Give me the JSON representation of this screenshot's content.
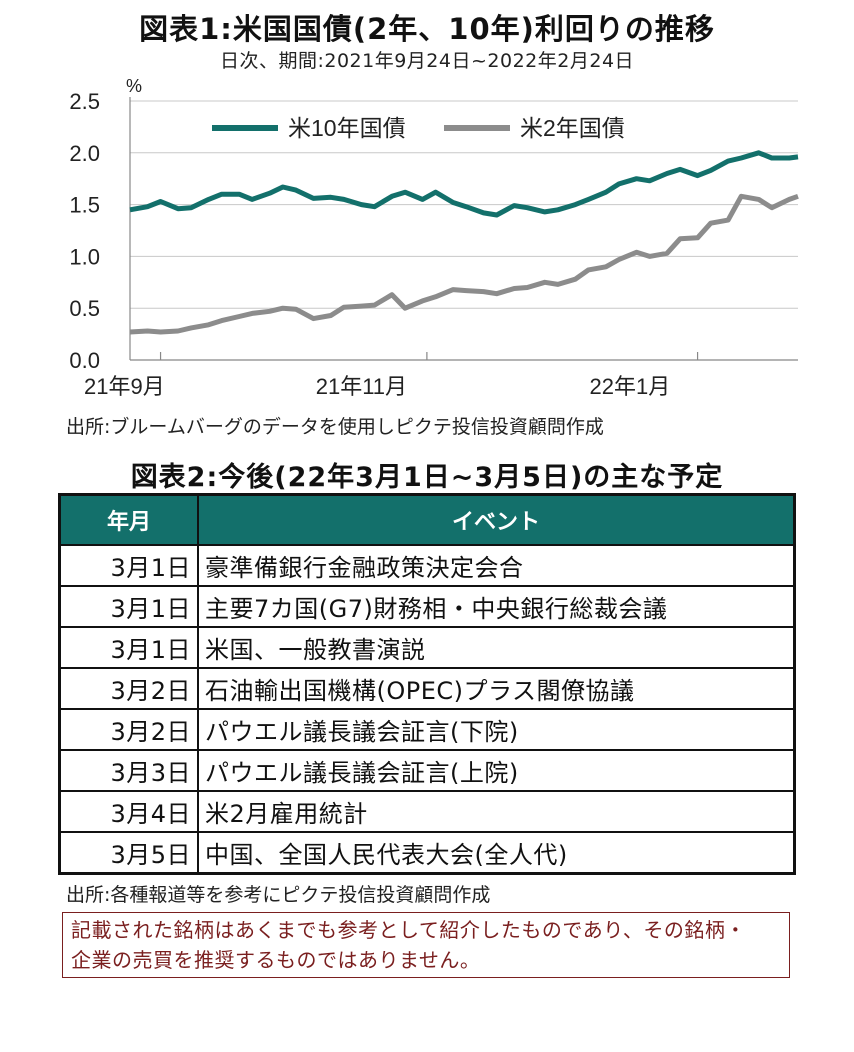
{
  "chart": {
    "title": "図表1:米国国債(2年、10年)利回りの推移",
    "subtitle": "日次、期間:2021年9月24日~2022年2月24日",
    "unit": "%",
    "source": "出所:ブルームバーグのデータを使用しピクテ投信投資顧問作成"
  },
  "chart_data": {
    "type": "line",
    "ylim": [
      0.0,
      2.5
    ],
    "y_ticks": [
      "0.0",
      "0.5",
      "1.0",
      "1.5",
      "2.0",
      "2.5"
    ],
    "x_tick_labels": [
      "21年9月",
      "21年11月",
      "22年1月"
    ],
    "grid": true,
    "legend_placement": "top-left",
    "x_range": [
      "2021-09-24",
      "2022-02-24"
    ],
    "series": [
      {
        "name": "米10年国債",
        "color": "#13706b",
        "points": [
          [
            "2021-09-24",
            1.45
          ],
          [
            "2021-09-28",
            1.48
          ],
          [
            "2021-10-01",
            1.53
          ],
          [
            "2021-10-05",
            1.46
          ],
          [
            "2021-10-08",
            1.47
          ],
          [
            "2021-10-12",
            1.55
          ],
          [
            "2021-10-15",
            1.6
          ],
          [
            "2021-10-19",
            1.6
          ],
          [
            "2021-10-22",
            1.55
          ],
          [
            "2021-10-26",
            1.61
          ],
          [
            "2021-10-29",
            1.67
          ],
          [
            "2021-11-01",
            1.64
          ],
          [
            "2021-11-05",
            1.56
          ],
          [
            "2021-11-09",
            1.57
          ],
          [
            "2021-11-12",
            1.55
          ],
          [
            "2021-11-16",
            1.5
          ],
          [
            "2021-11-19",
            1.48
          ],
          [
            "2021-11-23",
            1.58
          ],
          [
            "2021-11-26",
            1.62
          ],
          [
            "2021-11-30",
            1.55
          ],
          [
            "2021-12-03",
            1.62
          ],
          [
            "2021-12-07",
            1.52
          ],
          [
            "2021-12-10",
            1.48
          ],
          [
            "2021-12-14",
            1.42
          ],
          [
            "2021-12-17",
            1.4
          ],
          [
            "2021-12-21",
            1.49
          ],
          [
            "2021-12-24",
            1.47
          ],
          [
            "2021-12-28",
            1.43
          ],
          [
            "2021-12-31",
            1.45
          ],
          [
            "2022-01-04",
            1.5
          ],
          [
            "2022-01-07",
            1.55
          ],
          [
            "2022-01-11",
            1.62
          ],
          [
            "2022-01-14",
            1.7
          ],
          [
            "2022-01-18",
            1.75
          ],
          [
            "2022-01-21",
            1.73
          ],
          [
            "2022-01-25",
            1.8
          ],
          [
            "2022-01-28",
            1.84
          ],
          [
            "2022-02-01",
            1.78
          ],
          [
            "2022-02-04",
            1.83
          ],
          [
            "2022-02-08",
            1.92
          ],
          [
            "2022-02-11",
            1.95
          ],
          [
            "2022-02-15",
            2.0
          ],
          [
            "2022-02-18",
            1.95
          ],
          [
            "2022-02-22",
            1.95
          ],
          [
            "2022-02-24",
            1.96
          ]
        ]
      },
      {
        "name": "米2年国債",
        "color": "#8c8c8c",
        "points": [
          [
            "2021-09-24",
            0.27
          ],
          [
            "2021-09-28",
            0.28
          ],
          [
            "2021-10-01",
            0.27
          ],
          [
            "2021-10-05",
            0.28
          ],
          [
            "2021-10-08",
            0.31
          ],
          [
            "2021-10-12",
            0.34
          ],
          [
            "2021-10-15",
            0.38
          ],
          [
            "2021-10-19",
            0.42
          ],
          [
            "2021-10-22",
            0.45
          ],
          [
            "2021-10-26",
            0.47
          ],
          [
            "2021-10-29",
            0.5
          ],
          [
            "2021-11-01",
            0.49
          ],
          [
            "2021-11-05",
            0.4
          ],
          [
            "2021-11-09",
            0.43
          ],
          [
            "2021-11-12",
            0.51
          ],
          [
            "2021-11-16",
            0.52
          ],
          [
            "2021-11-19",
            0.53
          ],
          [
            "2021-11-23",
            0.63
          ],
          [
            "2021-11-26",
            0.5
          ],
          [
            "2021-11-30",
            0.57
          ],
          [
            "2021-12-03",
            0.61
          ],
          [
            "2021-12-07",
            0.68
          ],
          [
            "2021-12-10",
            0.67
          ],
          [
            "2021-12-14",
            0.66
          ],
          [
            "2021-12-17",
            0.64
          ],
          [
            "2021-12-21",
            0.69
          ],
          [
            "2021-12-24",
            0.7
          ],
          [
            "2021-12-28",
            0.75
          ],
          [
            "2021-12-31",
            0.73
          ],
          [
            "2022-01-04",
            0.78
          ],
          [
            "2022-01-07",
            0.87
          ],
          [
            "2022-01-11",
            0.9
          ],
          [
            "2022-01-14",
            0.97
          ],
          [
            "2022-01-18",
            1.04
          ],
          [
            "2022-01-21",
            1.0
          ],
          [
            "2022-01-25",
            1.03
          ],
          [
            "2022-01-28",
            1.17
          ],
          [
            "2022-02-01",
            1.18
          ],
          [
            "2022-02-04",
            1.32
          ],
          [
            "2022-02-08",
            1.35
          ],
          [
            "2022-02-11",
            1.58
          ],
          [
            "2022-02-15",
            1.55
          ],
          [
            "2022-02-18",
            1.47
          ],
          [
            "2022-02-22",
            1.55
          ],
          [
            "2022-02-24",
            1.58
          ]
        ]
      }
    ]
  },
  "table": {
    "title": "図表2:今後(22年3月1日~3月5日)の主な予定",
    "headers": {
      "date": "年月",
      "event": "イベント"
    },
    "rows": [
      {
        "date": "3月1日",
        "event": "豪準備銀行金融政策決定会合"
      },
      {
        "date": "3月1日",
        "event": "主要7カ国(G7)財務相・中央銀行総裁会議"
      },
      {
        "date": "3月1日",
        "event": "米国、一般教書演説"
      },
      {
        "date": "3月2日",
        "event": "石油輸出国機構(OPEC)プラス閣僚協議"
      },
      {
        "date": "3月2日",
        "event": "パウエル議長議会証言(下院)"
      },
      {
        "date": "3月3日",
        "event": "パウエル議長議会証言(上院)"
      },
      {
        "date": "3月4日",
        "event": "米2月雇用統計"
      },
      {
        "date": "3月5日",
        "event": "中国、全国人民代表大会(全人代)"
      }
    ],
    "header_color": "#13706b",
    "source": "出所:各種報道等を参考にピクテ投信投資顧問作成"
  },
  "disclaimer": {
    "line1": "記載された銘柄はあくまでも参考として紹介したものであり、その銘柄・",
    "line2": "企業の売買を推奨するものではありません。",
    "color": "#7a1f1f"
  }
}
